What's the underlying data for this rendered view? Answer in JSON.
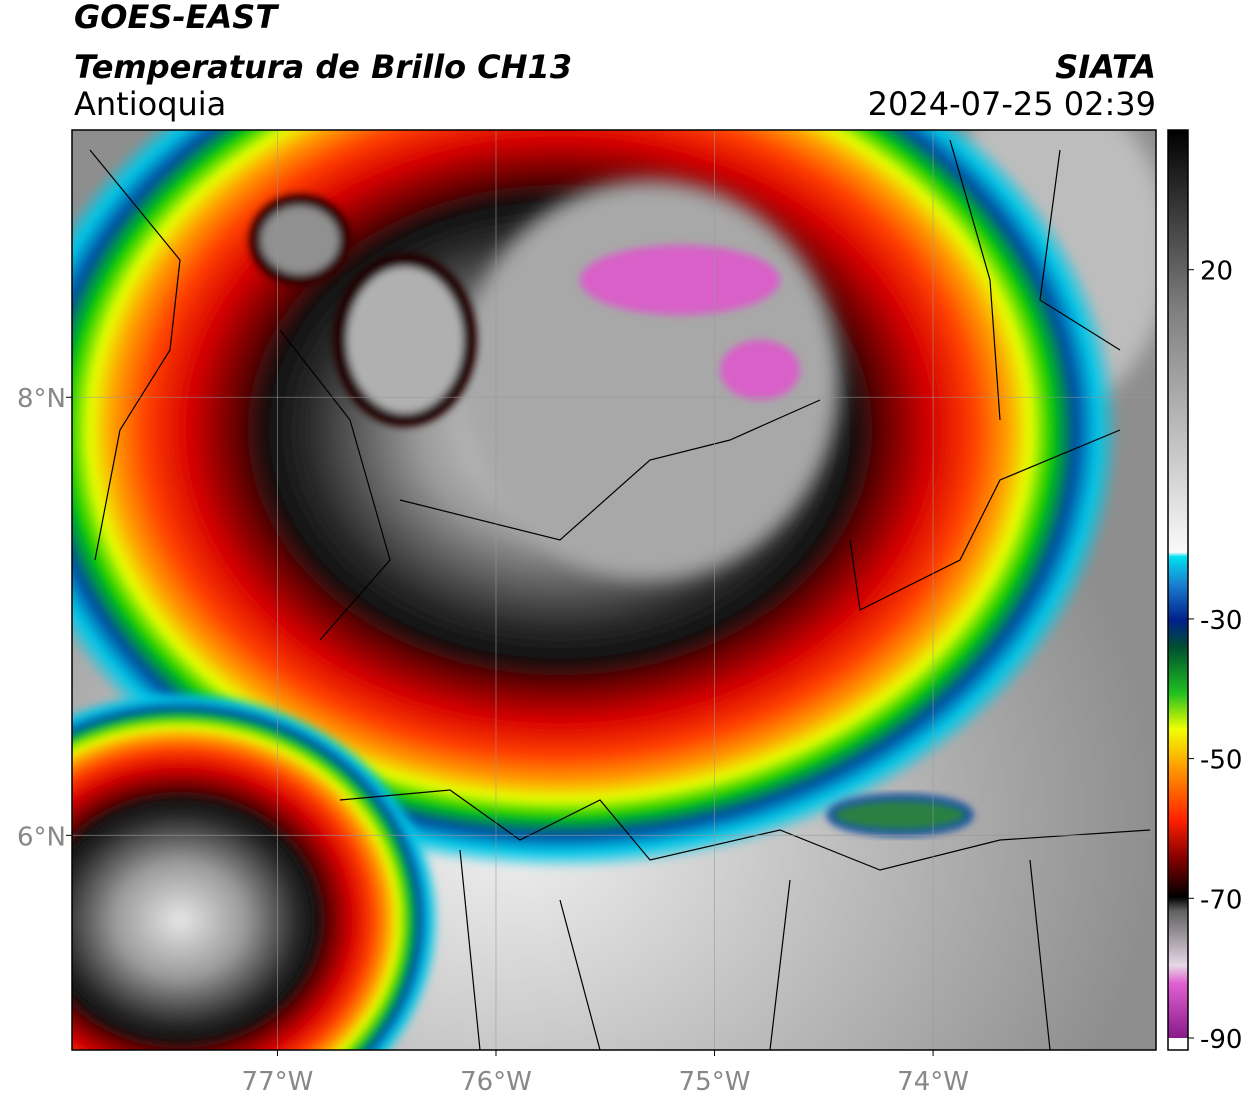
{
  "header": {
    "satellite": "GOES-EAST",
    "product": "Temperatura de Brillo CH13",
    "region": "Antioquia",
    "source": "SIATA",
    "datetime": "2024-07-25 02:39"
  },
  "map": {
    "xlim": [
      -77.94,
      -72.98
    ],
    "ylim": [
      5.02,
      9.22
    ],
    "xticks": [
      {
        "value": -77,
        "label": "77°W"
      },
      {
        "value": -76,
        "label": "76°W"
      },
      {
        "value": -75,
        "label": "75°W"
      },
      {
        "value": -74,
        "label": "74°W"
      }
    ],
    "yticks": [
      {
        "value": 6,
        "label": "6°N"
      },
      {
        "value": 8,
        "label": "8°N"
      }
    ],
    "grid": true
  },
  "colorbar": {
    "lim": [
      -90,
      40
    ],
    "ticks": [
      -90,
      -70,
      -50,
      -30,
      20
    ]
  }
}
